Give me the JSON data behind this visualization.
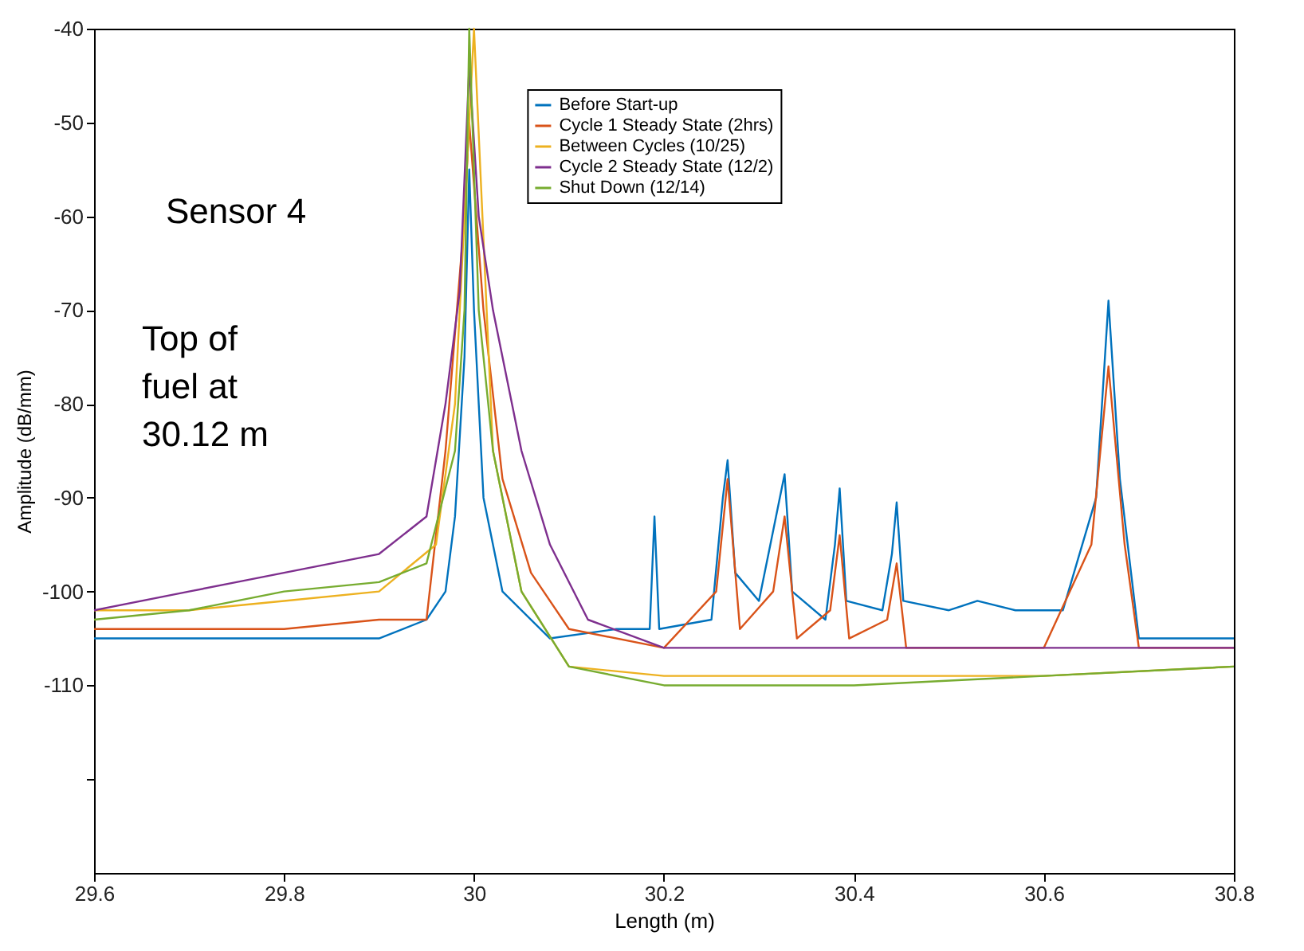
{
  "chart_data": {
    "type": "line",
    "xlabel": "Length (m)",
    "ylabel": "Amplitude (dB/mm)",
    "xlim": [
      29.6,
      30.8
    ],
    "xticks": [
      29.6,
      29.8,
      30,
      30.2,
      30.4,
      30.6,
      30.8
    ],
    "ylim": [
      -130,
      -40
    ],
    "yticks": [
      -40,
      -50,
      -60,
      -70,
      -80,
      -90,
      -100,
      -110,
      {
        "value": -120,
        "label": null
      }
    ],
    "grid": false,
    "legend": "top",
    "marker": "none",
    "line_style": "solid",
    "annotations": [
      "Sensor 4",
      "Top of fuel at 30.12 m"
    ],
    "series": [
      {
        "name": "Before Start-up",
        "color": "#0072bd",
        "x": [
          29.6,
          29.7,
          29.8,
          29.9,
          29.95,
          29.97,
          29.98,
          29.99,
          29.995,
          30.0,
          30.01,
          30.03,
          30.08,
          30.15,
          30.185,
          30.19,
          30.195,
          30.25,
          30.262,
          30.267,
          30.275,
          30.3,
          30.318,
          30.327,
          30.335,
          30.37,
          30.38,
          30.385,
          30.392,
          30.43,
          30.44,
          30.445,
          30.452,
          30.5,
          30.53,
          30.57,
          30.62,
          30.655,
          30.668,
          30.68,
          30.7,
          30.8
        ],
        "values": [
          -105,
          -105,
          -105,
          -105,
          -103,
          -100,
          -92,
          -75,
          -55,
          -70,
          -90,
          -100,
          -105,
          -104,
          -104,
          -92,
          -104,
          -103,
          -90,
          -86,
          -98,
          -101,
          -92,
          -87.5,
          -100,
          -103,
          -95,
          -89,
          -101,
          -102,
          -96,
          -90.5,
          -101,
          -102,
          -101,
          -102,
          -102,
          -90,
          -69,
          -88,
          -105,
          -105
        ]
      },
      {
        "name": "Cycle 1 Steady State (2hrs)",
        "color": "#d95319",
        "x": [
          29.6,
          29.7,
          29.8,
          29.9,
          29.95,
          29.97,
          29.99,
          29.995,
          30.01,
          30.03,
          30.06,
          30.1,
          30.2,
          30.255,
          30.267,
          30.28,
          30.315,
          30.327,
          30.34,
          30.375,
          30.385,
          30.395,
          30.435,
          30.445,
          30.455,
          30.5,
          30.6,
          30.65,
          30.668,
          30.685,
          30.7,
          30.8
        ],
        "values": [
          -104,
          -104,
          -104,
          -103,
          -103,
          -85,
          -60,
          -50,
          -70,
          -88,
          -98,
          -104,
          -106,
          -100,
          -88,
          -104,
          -100,
          -92,
          -105,
          -102,
          -94,
          -105,
          -103,
          -97,
          -106,
          -106,
          -106,
          -95,
          -76,
          -95,
          -106,
          -106
        ]
      },
      {
        "name": "Between Cycles (10/25)",
        "color": "#edb120",
        "x": [
          29.6,
          29.7,
          29.8,
          29.9,
          29.96,
          29.98,
          29.99,
          30.0,
          30.02,
          30.05,
          30.1,
          30.2,
          30.4,
          30.6,
          30.8
        ],
        "values": [
          -102,
          -102,
          -101,
          -100,
          -95,
          -80,
          -60,
          -40,
          -85,
          -100,
          -108,
          -109,
          -109,
          -109,
          -108
        ]
      },
      {
        "name": "Cycle 2 Steady State (12/2)",
        "color": "#7e2f8e",
        "x": [
          29.6,
          29.7,
          29.75,
          29.8,
          29.9,
          29.95,
          29.97,
          29.985,
          29.995,
          30.005,
          30.02,
          30.05,
          30.08,
          30.12,
          30.2,
          30.4,
          30.6,
          30.8
        ],
        "values": [
          -102,
          -100,
          -99,
          -98,
          -96,
          -92,
          -80,
          -68,
          -44,
          -60,
          -70,
          -85,
          -95,
          -103,
          -106,
          -106,
          -106,
          -106
        ]
      },
      {
        "name": "Shut Down (12/14)",
        "color": "#77ac30",
        "x": [
          29.6,
          29.7,
          29.8,
          29.9,
          29.95,
          29.98,
          29.99,
          29.995,
          30.005,
          30.02,
          30.05,
          30.1,
          30.2,
          30.4,
          30.6,
          30.8
        ],
        "values": [
          -103,
          -102,
          -100,
          -99,
          -97,
          -85,
          -70,
          -40,
          -70,
          -85,
          -100,
          -108,
          -110,
          -110,
          -109,
          -108
        ]
      }
    ]
  }
}
